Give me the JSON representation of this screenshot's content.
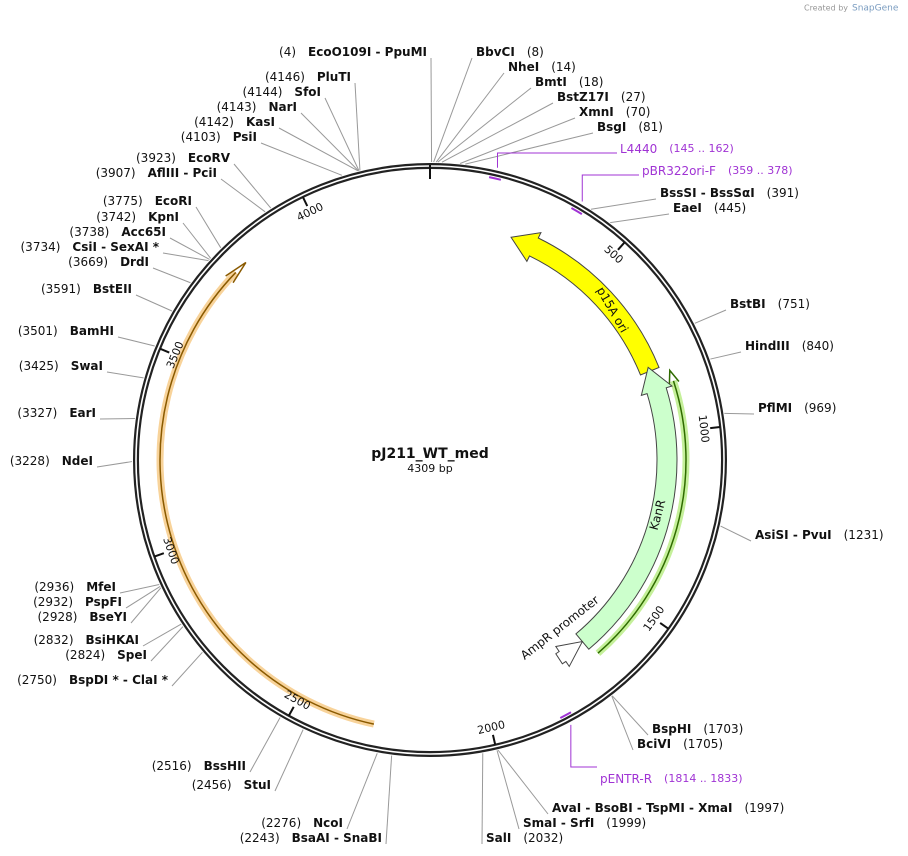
{
  "header": {
    "created_by": "Created by",
    "brand": "SnapGene"
  },
  "plasmid": {
    "name": "pJ211_WT_med",
    "length": "4309 bp"
  },
  "ticks": [
    500,
    1000,
    1500,
    2000,
    2500,
    3000,
    3500,
    4000
  ],
  "enzymes": [
    {
      "label": "EcoO109I - PpuMI",
      "position": "(4)"
    },
    {
      "label": "BbvCI",
      "position": "(8)"
    },
    {
      "label": "NheI",
      "position": "(14)"
    },
    {
      "label": "BmtI",
      "position": "(18)"
    },
    {
      "label": "BstZ17I",
      "position": "(27)"
    },
    {
      "label": "XmnI",
      "position": "(70)"
    },
    {
      "label": "BsgI",
      "position": "(81)"
    },
    {
      "label": "BssSI - BssSαI",
      "position": "(391)"
    },
    {
      "label": "EaeI",
      "position": "(445)"
    },
    {
      "label": "BstBI",
      "position": "(751)"
    },
    {
      "label": "HindIII",
      "position": "(840)"
    },
    {
      "label": "PflMI",
      "position": "(969)"
    },
    {
      "label": "AsiSI - PvuI",
      "position": "(1231)"
    },
    {
      "label": "BspHI",
      "position": "(1703)"
    },
    {
      "label": "BciVI",
      "position": "(1705)"
    },
    {
      "label": "AvaI - BsoBI - TspMI - XmaI",
      "position": "(1997)"
    },
    {
      "label": "SmaI - SrfI",
      "position": "(1999)"
    },
    {
      "label": "SalI",
      "position": "(2032)"
    },
    {
      "label": "BsaAI - SnaBI",
      "position": "(2243)"
    },
    {
      "label": "NcoI",
      "position": "(2276)"
    },
    {
      "label": "StuI",
      "position": "(2456)"
    },
    {
      "label": "BssHII",
      "position": "(2516)"
    },
    {
      "label": "BspDI * - ClaI *",
      "position": "(2750)"
    },
    {
      "label": "SpeI",
      "position": "(2824)"
    },
    {
      "label": "BsiHKAI",
      "position": "(2832)"
    },
    {
      "label": "BseYI",
      "position": "(2928)"
    },
    {
      "label": "PspFI",
      "position": "(2932)"
    },
    {
      "label": "MfeI",
      "position": "(2936)"
    },
    {
      "label": "NdeI",
      "position": "(3228)"
    },
    {
      "label": "EarI",
      "position": "(3327)"
    },
    {
      "label": "SwaI",
      "position": "(3425)"
    },
    {
      "label": "BamHI",
      "position": "(3501)"
    },
    {
      "label": "BstEII",
      "position": "(3591)"
    },
    {
      "label": "DrdI",
      "position": "(3669)"
    },
    {
      "label": "CsiI - SexAI *",
      "position": "(3734)"
    },
    {
      "label": "Acc65I",
      "position": "(3738)"
    },
    {
      "label": "KpnI",
      "position": "(3742)"
    },
    {
      "label": "EcoRI",
      "position": "(3775)"
    },
    {
      "label": "AflIII - PciI",
      "position": "(3907)"
    },
    {
      "label": "EcoRV",
      "position": "(3923)"
    },
    {
      "label": "PsiI",
      "position": "(4103)"
    },
    {
      "label": "KasI",
      "position": "(4142)"
    },
    {
      "label": "NarI",
      "position": "(4143)"
    },
    {
      "label": "SfoI",
      "position": "(4144)"
    },
    {
      "label": "PluTI",
      "position": "(4146)"
    }
  ],
  "primers": [
    {
      "label": "L4440",
      "range": "(145 .. 162)"
    },
    {
      "label": "pBR322ori-F",
      "range": "(359 .. 378)"
    },
    {
      "label": "pENTR-R",
      "range": "(1814 .. 1833)"
    }
  ],
  "features": [
    {
      "label": "p15A ori"
    },
    {
      "label": "KanR"
    },
    {
      "label": "AmpR promoter"
    }
  ]
}
